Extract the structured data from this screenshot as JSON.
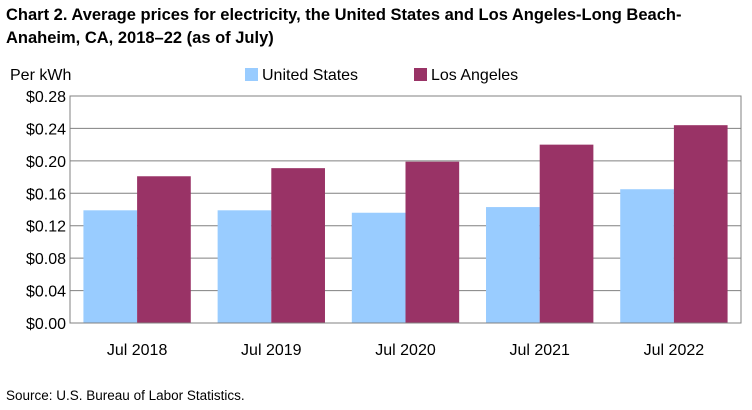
{
  "chart_data": {
    "type": "bar",
    "title": "Chart 2. Average prices for electricity, the United States and Los Angeles-Long Beach-Anaheim, CA, 2018–22 (as of July)",
    "ylabel": "Per kWh",
    "xlabel": "",
    "categories": [
      "Jul 2018",
      "Jul 2019",
      "Jul 2020",
      "Jul 2021",
      "Jul 2022"
    ],
    "series": [
      {
        "name": "United States",
        "color": "#99ccff",
        "values": [
          0.139,
          0.139,
          0.136,
          0.143,
          0.165
        ]
      },
      {
        "name": "Los Angeles",
        "color": "#993366",
        "values": [
          0.181,
          0.191,
          0.199,
          0.22,
          0.244
        ]
      }
    ],
    "ylim": [
      0,
      0.28
    ],
    "yticks": [
      0,
      0.04,
      0.08,
      0.12,
      0.16,
      0.2,
      0.24,
      0.28
    ],
    "ytick_labels": [
      "$0.00",
      "$0.04",
      "$0.08",
      "$0.12",
      "$0.16",
      "$0.20",
      "$0.24",
      "$0.28"
    ],
    "grid": true,
    "legend": "top-center"
  },
  "source": "Source: U.S. Bureau of Labor Statistics."
}
